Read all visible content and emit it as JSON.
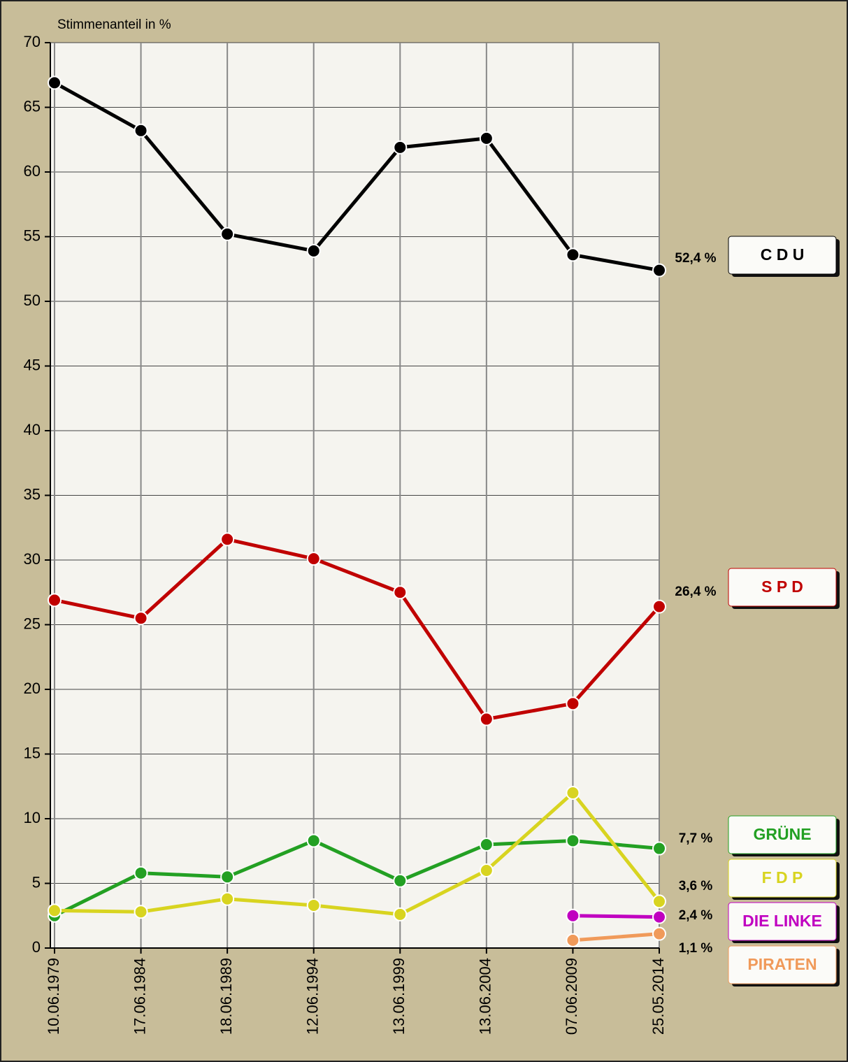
{
  "chart_data": {
    "type": "line",
    "y_label": "Stimmenanteil in %",
    "categories": [
      "10.06.1979",
      "17.06.1984",
      "18.06.1989",
      "12.06.1994",
      "13.06.1999",
      "13.06.2004",
      "07.06.2009",
      "25.05.2014"
    ],
    "ylim": [
      0,
      70
    ],
    "yticks": [
      0,
      5,
      10,
      15,
      20,
      25,
      30,
      35,
      40,
      45,
      50,
      55,
      60,
      65,
      70
    ],
    "grid": true,
    "series": [
      {
        "name": "C D U",
        "color": "#000000",
        "values": [
          66.9,
          63.2,
          55.2,
          53.9,
          61.9,
          62.6,
          53.6,
          52.4
        ],
        "value_labels": [
          null,
          null,
          null,
          null,
          null,
          null,
          null,
          "52,4 %"
        ]
      },
      {
        "name": "S P D",
        "color": "#c00000",
        "values": [
          26.9,
          25.5,
          31.6,
          30.1,
          27.5,
          17.7,
          18.9,
          26.4
        ],
        "value_labels": [
          null,
          null,
          null,
          null,
          null,
          null,
          null,
          "26,4 %"
        ]
      },
      {
        "name": "GRÜNE",
        "color": "#23a023",
        "values": [
          2.5,
          5.8,
          5.5,
          8.3,
          5.2,
          8.0,
          8.3,
          7.7
        ],
        "value_labels": [
          null,
          null,
          null,
          null,
          null,
          null,
          null,
          "7,7 %"
        ]
      },
      {
        "name": "F D P",
        "color": "#d8d420",
        "values": [
          2.9,
          2.8,
          3.8,
          3.3,
          2.6,
          6.0,
          12.0,
          3.6
        ],
        "value_labels": [
          null,
          null,
          null,
          null,
          null,
          null,
          null,
          "3,6 %"
        ]
      },
      {
        "name": "DIE LINKE",
        "color": "#c000c0",
        "values": [
          null,
          null,
          null,
          null,
          null,
          null,
          2.5,
          2.4
        ],
        "value_labels": [
          null,
          null,
          null,
          null,
          null,
          null,
          null,
          "2,4 %"
        ]
      },
      {
        "name": "PIRATEN",
        "color": "#f09a5a",
        "values": [
          null,
          null,
          null,
          null,
          null,
          null,
          0.6,
          1.1
        ],
        "value_labels": [
          null,
          null,
          null,
          null,
          null,
          null,
          null,
          "1,1 %"
        ]
      }
    ]
  }
}
